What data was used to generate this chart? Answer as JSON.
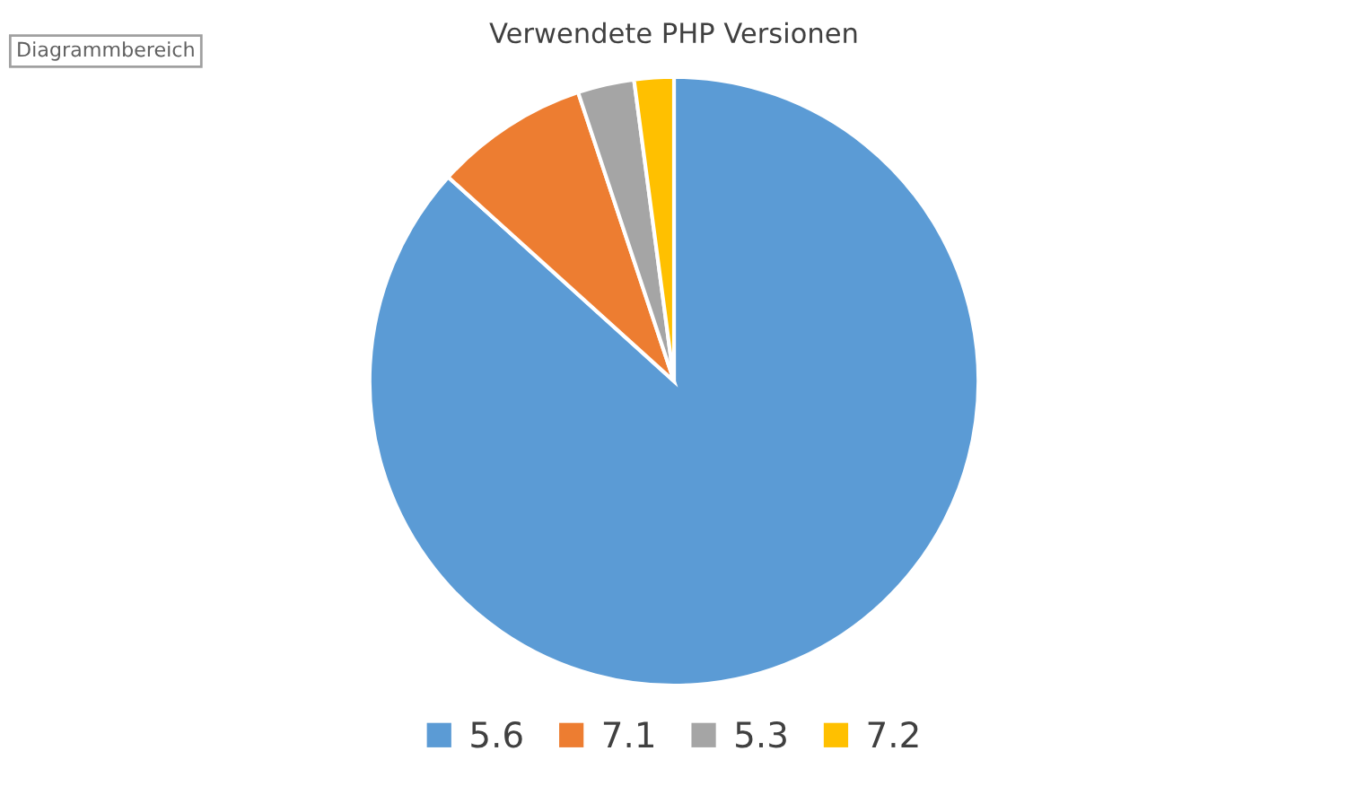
{
  "chart_data": {
    "type": "pie",
    "title": "Verwendete PHP Versionen",
    "categories": [
      "5.6",
      "7.1",
      "5.3",
      "7.2"
    ],
    "values": [
      86.7,
      8.2,
      3.0,
      2.1
    ],
    "colors": [
      "#5b9bd5",
      "#ed7d31",
      "#a5a5a5",
      "#ffc000"
    ],
    "legend": "bottom",
    "annotations": [
      "Diagrammbereich"
    ]
  }
}
